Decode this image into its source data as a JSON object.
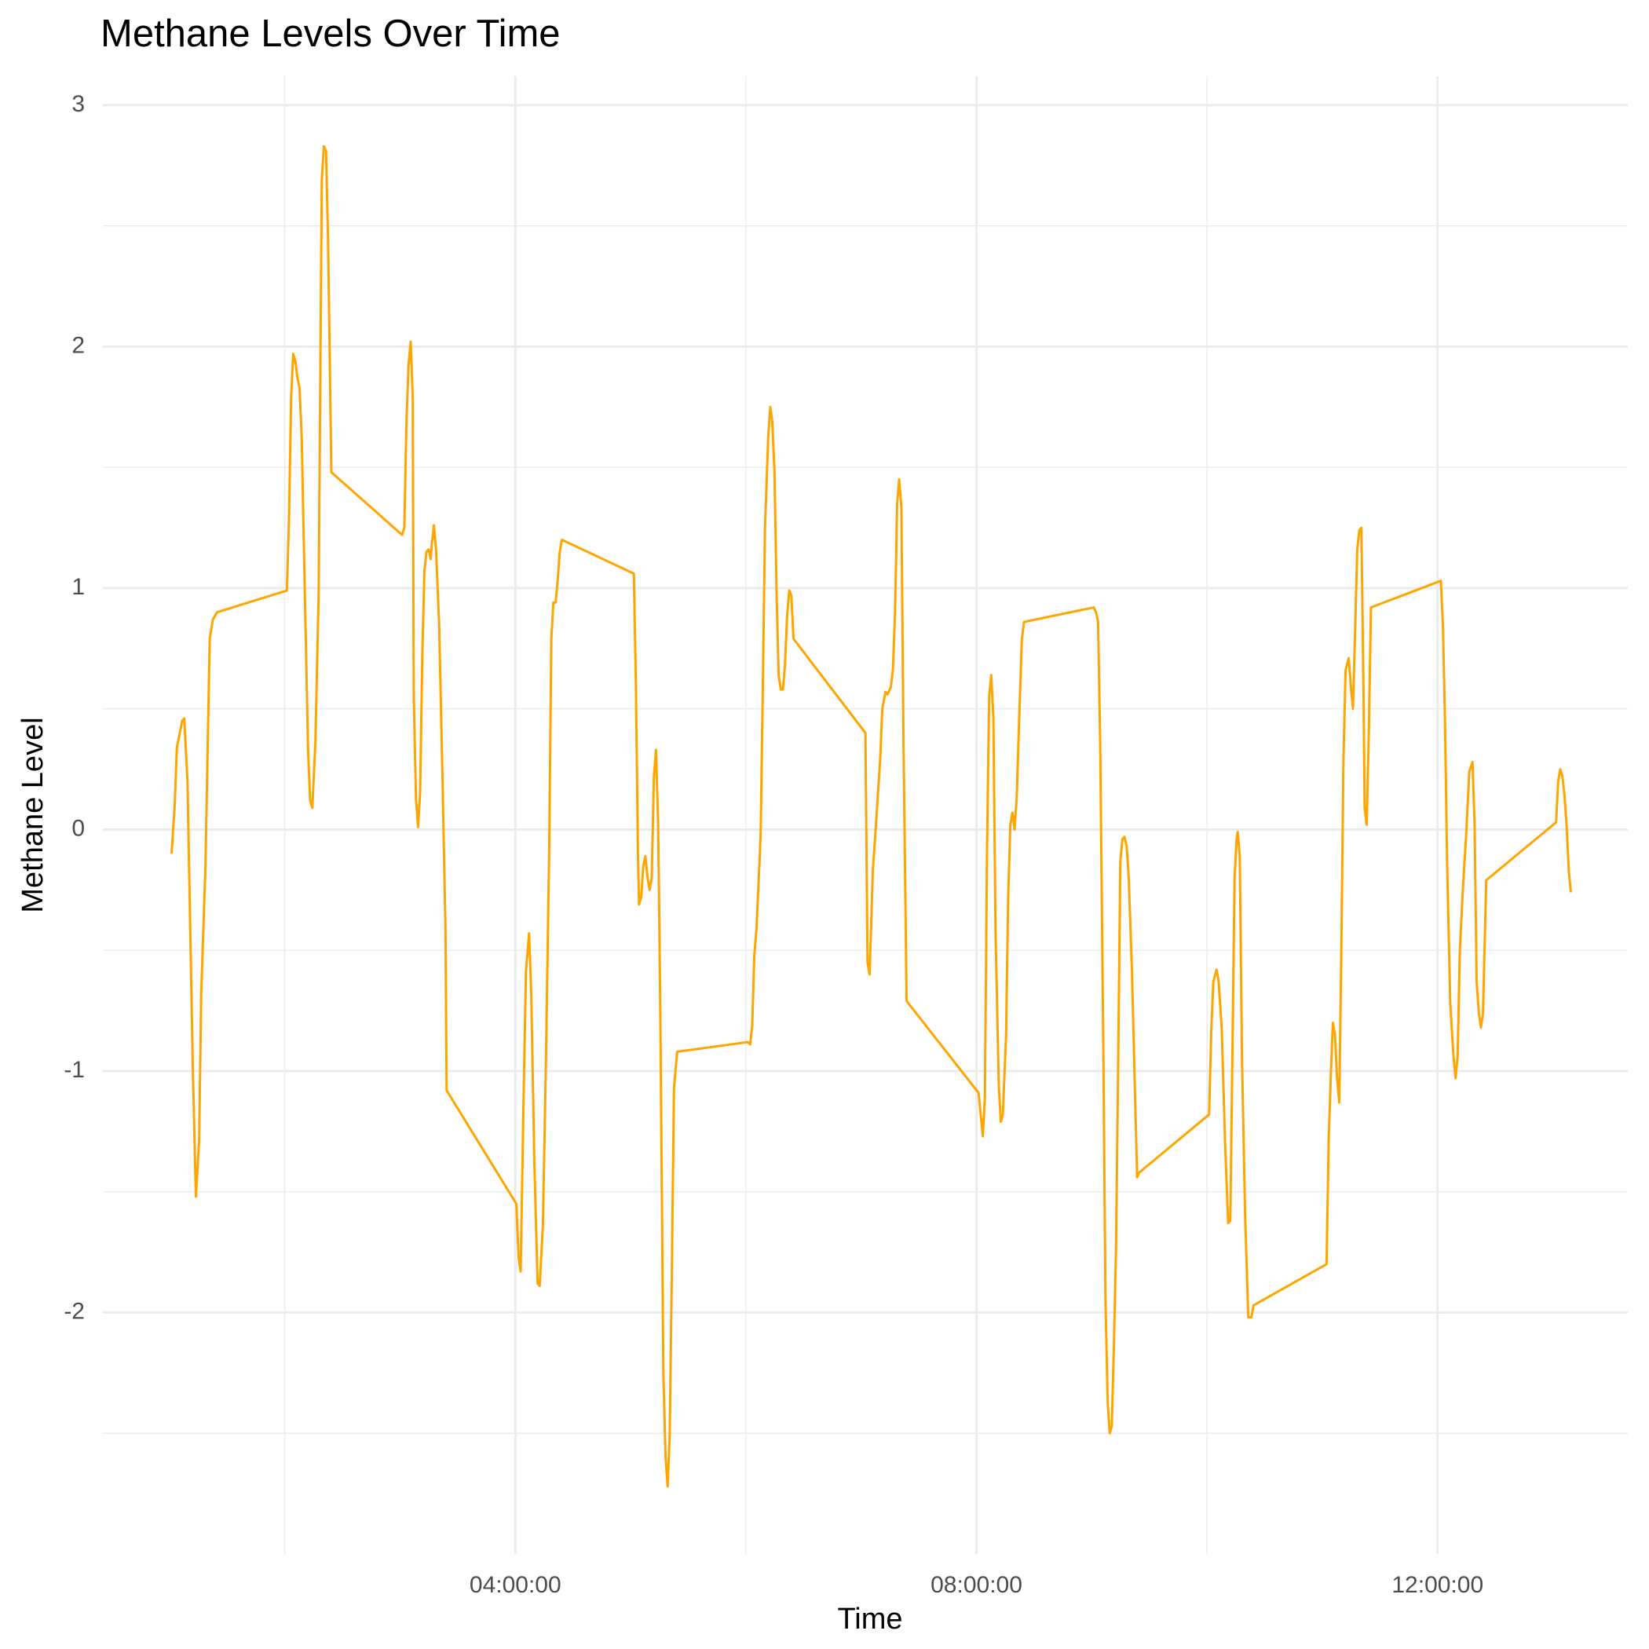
{
  "chart_data": {
    "type": "line",
    "title": "Methane Levels Over Time",
    "x_label": "Time",
    "y_label": "Methane Level",
    "color": "#FFA500",
    "grid": true,
    "xlim": [
      "00:25:19",
      "13:39:00"
    ],
    "xticks": [
      "04:00:00",
      "08:00:00",
      "12:00:00"
    ],
    "xminor": [
      "02:00:00",
      "06:00:00",
      "10:00:00"
    ],
    "ylim": [
      -3.0,
      3.12
    ],
    "yticks": [
      -2,
      -1,
      0,
      1,
      2,
      3
    ],
    "yminor": [
      -2.5,
      -1.5,
      -0.5,
      0.5,
      1.5,
      2.5
    ],
    "x": [
      "01:01:05",
      "01:02:46",
      "01:03:50",
      "01:05:24",
      "01:06:36",
      "01:07:41",
      "01:09:22",
      "01:12:07",
      "01:13:44",
      "01:15:25",
      "01:16:30",
      "01:18:43",
      "01:20:56",
      "01:22:34",
      "01:24:47",
      "02:01:05",
      "02:02:13",
      "02:03:18",
      "02:04:23",
      "02:05:31",
      "02:06:36",
      "02:07:41",
      "02:08:49",
      "02:10:26",
      "02:12:07",
      "02:13:12",
      "02:14:20",
      "02:15:58",
      "02:17:38",
      "02:18:43",
      "02:19:16",
      "02:20:20",
      "02:21:29",
      "02:22:34",
      "02:24:14",
      "03:01:05",
      "03:02:13",
      "03:03:18",
      "03:04:23",
      "03:05:31",
      "03:06:36",
      "03:07:08",
      "03:08:17",
      "03:09:22",
      "03:10:26",
      "03:11:35",
      "03:12:40",
      "03:13:44",
      "03:14:53",
      "03:15:58",
      "03:16:30",
      "03:17:38",
      "03:18:43",
      "03:20:20",
      "03:22:01",
      "03:23:38",
      "03:24:14",
      "04:00:32",
      "04:01:41",
      "04:02:46",
      "04:04:23",
      "04:05:31",
      "04:07:08",
      "04:08:17",
      "04:09:54",
      "04:11:35",
      "04:12:40",
      "04:14:20",
      "04:15:58",
      "04:17:38",
      "04:18:43",
      "04:19:48",
      "04:20:56",
      "04:22:01",
      "04:23:06",
      "04:24:14",
      "05:01:41",
      "05:02:46",
      "05:03:50",
      "05:04:23",
      "05:05:31",
      "05:06:36",
      "05:07:41",
      "05:08:49",
      "05:09:54",
      "05:10:59",
      "05:12:07",
      "05:13:12",
      "05:14:20",
      "05:15:25",
      "05:17:02",
      "05:18:11",
      "05:19:16",
      "05:20:20",
      "05:21:29",
      "05:22:34",
      "05:24:14",
      "06:01:05",
      "06:02:13",
      "06:03:18",
      "06:04:23",
      "06:05:31",
      "06:06:36",
      "06:07:41",
      "06:08:49",
      "06:09:54",
      "06:11:35",
      "06:12:40",
      "06:13:44",
      "06:14:53",
      "06:15:58",
      "06:17:02",
      "06:18:11",
      "06:19:16",
      "06:20:20",
      "06:21:29",
      "06:22:34",
      "06:23:38",
      "06:24:47",
      "07:02:13",
      "07:03:18",
      "07:04:23",
      "07:06:04",
      "07:07:41",
      "07:09:54",
      "07:10:59",
      "07:12:40",
      "07:13:44",
      "07:15:25",
      "07:16:30",
      "07:17:38",
      "07:18:43",
      "07:19:48",
      "07:20:56",
      "07:22:01",
      "07:23:38",
      "08:01:05",
      "08:02:13",
      "08:03:18",
      "08:04:23",
      "08:05:31",
      "08:06:36",
      "08:07:41",
      "08:08:49",
      "08:09:54",
      "08:11:35",
      "08:12:40",
      "08:13:44",
      "08:15:25",
      "08:16:30",
      "08:17:38",
      "08:18:43",
      "08:19:48",
      "08:20:56",
      "08:22:34",
      "08:23:38",
      "08:24:47",
      "09:01:05",
      "09:02:13",
      "09:03:18",
      "09:04:23",
      "09:06:04",
      "09:07:08",
      "09:08:17",
      "09:09:22",
      "09:10:26",
      "09:11:35",
      "09:12:40",
      "09:13:44",
      "09:14:53",
      "09:15:58",
      "09:17:02",
      "09:18:11",
      "09:19:16",
      "09:20:56",
      "09:22:34",
      "09:23:38",
      "09:24:47",
      "10:01:05",
      "10:02:13",
      "10:03:18",
      "10:04:59",
      "10:06:04",
      "10:07:41",
      "10:09:22",
      "10:10:59",
      "10:12:07",
      "10:13:12",
      "10:14:20",
      "10:15:25",
      "10:15:58",
      "10:17:02",
      "10:18:11",
      "10:19:48",
      "10:21:29",
      "10:23:06",
      "10:24:14",
      "11:02:13",
      "11:03:18",
      "11:04:23",
      "11:05:31",
      "11:06:36",
      "11:07:41",
      "11:08:49",
      "11:09:54",
      "11:10:59",
      "11:12:07",
      "11:13:44",
      "11:14:53",
      "11:15:58",
      "11:17:02",
      "11:18:11",
      "11:19:16",
      "11:20:20",
      "11:21:29",
      "11:22:01",
      "11:23:06",
      "11:24:14",
      "11:25:19",
      "12:01:41",
      "12:02:46",
      "12:03:50",
      "12:04:59",
      "12:06:36",
      "12:08:17",
      "12:09:22",
      "12:10:26",
      "12:11:35",
      "12:13:12",
      "12:14:53",
      "12:16:30",
      "12:18:11",
      "12:19:16",
      "12:20:20",
      "12:21:29",
      "12:22:34",
      "12:23:38",
      "12:25:19",
      "13:01:41",
      "13:02:46",
      "13:03:50",
      "13:04:59",
      "13:06:04",
      "13:07:08",
      "13:08:17",
      "13:09:22"
    ],
    "values": [
      -0.1,
      0.11,
      0.34,
      0.4,
      0.45,
      0.46,
      0.2,
      -0.98,
      -1.52,
      -1.29,
      -0.68,
      -0.15,
      0.79,
      0.87,
      0.9,
      0.99,
      1.29,
      1.79,
      1.97,
      1.94,
      1.87,
      1.83,
      1.62,
      0.98,
      0.33,
      0.12,
      0.09,
      0.37,
      0.98,
      2.12,
      2.69,
      2.83,
      2.81,
      2.42,
      1.48,
      1.22,
      1.25,
      1.68,
      1.92,
      2.02,
      1.79,
      0.55,
      0.13,
      0.01,
      0.15,
      0.72,
      1.07,
      1.15,
      1.16,
      1.12,
      1.18,
      1.26,
      1.16,
      0.85,
      0.24,
      -0.41,
      -1.08,
      -1.55,
      -1.77,
      -1.83,
      -1.07,
      -0.59,
      -0.43,
      -0.68,
      -1.38,
      -1.88,
      -1.89,
      -1.64,
      -0.94,
      -0.07,
      0.79,
      0.94,
      0.94,
      1.03,
      1.15,
      1.2,
      1.06,
      0.59,
      -0.11,
      -0.31,
      -0.28,
      -0.15,
      -0.11,
      -0.2,
      -0.25,
      -0.2,
      0.22,
      0.33,
      0.02,
      -0.72,
      -2.25,
      -2.6,
      -2.72,
      -2.51,
      -1.81,
      -1.07,
      -0.92,
      -0.88,
      -0.89,
      -0.81,
      -0.52,
      -0.41,
      -0.22,
      -0.02,
      0.59,
      1.24,
      1.62,
      1.75,
      1.69,
      1.48,
      0.98,
      0.64,
      0.58,
      0.58,
      0.68,
      0.89,
      0.99,
      0.97,
      0.79,
      0.4,
      -0.55,
      -0.6,
      -0.17,
      0.02,
      0.29,
      0.5,
      0.57,
      0.56,
      0.59,
      0.66,
      0.9,
      1.35,
      1.45,
      1.33,
      0.37,
      -0.71,
      -1.09,
      -1.18,
      -1.27,
      -1.11,
      -0.07,
      0.55,
      0.64,
      0.46,
      -0.41,
      -1.05,
      -1.21,
      -1.18,
      -0.85,
      -0.28,
      0.02,
      0.07,
      0.0,
      0.13,
      0.54,
      0.79,
      0.86,
      0.92,
      0.9,
      0.86,
      0.37,
      -0.94,
      -1.94,
      -2.37,
      -2.5,
      -2.47,
      -2.12,
      -1.72,
      -0.98,
      -0.13,
      -0.04,
      -0.03,
      -0.07,
      -0.2,
      -0.59,
      -1.11,
      -1.44,
      -1.42,
      -1.18,
      -0.83,
      -0.63,
      -0.58,
      -0.63,
      -0.83,
      -1.29,
      -1.63,
      -1.62,
      -0.94,
      -0.2,
      -0.04,
      -0.01,
      -0.11,
      -0.94,
      -1.59,
      -2.02,
      -2.02,
      -1.97,
      -1.8,
      -1.29,
      -1.03,
      -0.8,
      -0.85,
      -1.03,
      -1.13,
      -0.5,
      0.28,
      0.66,
      0.71,
      0.59,
      0.5,
      0.81,
      1.16,
      1.24,
      1.25,
      0.55,
      0.09,
      0.02,
      0.41,
      0.92,
      1.03,
      0.85,
      0.46,
      -0.15,
      -0.72,
      -0.94,
      -1.03,
      -0.94,
      -0.5,
      -0.24,
      -0.02,
      0.24,
      0.28,
      0.02,
      -0.63,
      -0.76,
      -0.82,
      -0.76,
      -0.21,
      0.03,
      0.2,
      0.25,
      0.22,
      0.14,
      0.02,
      -0.17,
      -0.26
    ]
  }
}
